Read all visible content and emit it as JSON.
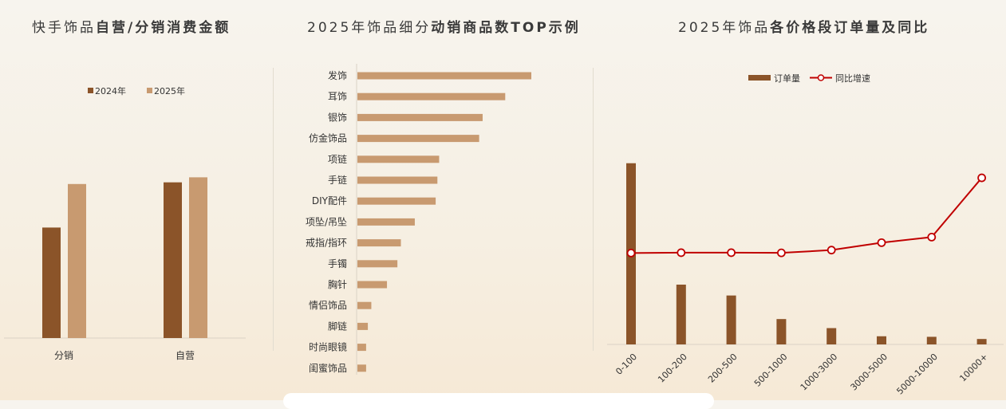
{
  "colors": {
    "dark": "#8b5429",
    "light": "#c89a70",
    "line": "#c00000"
  },
  "titles": [
    {
      "pre": "快手饰品",
      "bold": "自营/分销消费金额"
    },
    {
      "pre": "2025年饰品细分",
      "bold": "动销商品数TOP示例"
    },
    {
      "pre": "2025年饰品",
      "bold": "各价格段订单量及同比"
    }
  ],
  "chart_data": [
    {
      "type": "bar",
      "title": "快手饰品自营/分销消费金额",
      "categories": [
        "分销",
        "自营"
      ],
      "series": [
        {
          "name": "2024年",
          "values": [
            0.66,
            0.93
          ]
        },
        {
          "name": "2025年",
          "values": [
            0.92,
            0.96
          ]
        }
      ],
      "ylim": [
        0,
        1
      ],
      "legend": "top-center",
      "grid": false
    },
    {
      "type": "bar",
      "orientation": "horizontal",
      "title": "2025年饰品细分动销商品数TOP示例",
      "categories": [
        "发饰",
        "耳饰",
        "银饰",
        "仿金饰品",
        "项链",
        "手链",
        "DIY配件",
        "项坠/吊坠",
        "戒指/指环",
        "手镯",
        "胸针",
        "情侣饰品",
        "脚链",
        "时尚眼镜",
        "闺蜜饰品"
      ],
      "values": [
        100,
        85,
        72,
        70,
        47,
        46,
        45,
        33,
        25,
        23,
        17,
        8,
        6,
        5,
        5
      ],
      "xlim": [
        0,
        100
      ],
      "grid": false
    },
    {
      "type": "bar",
      "title": "2025年饰品各价格段订单量及同比",
      "categories": [
        "0-100",
        "100-200",
        "200-500",
        "500-1000",
        "1000-3000",
        "3000-5000",
        "5000-10000",
        "10000+"
      ],
      "series": [
        {
          "name": "订单量",
          "type": "bar",
          "values": [
            100,
            33,
            27,
            14,
            9,
            4.5,
            4.2,
            3
          ]
        },
        {
          "name": "同比增速",
          "type": "line",
          "values": [
            0,
            0.1,
            0.1,
            0.05,
            0.8,
            2.8,
            4.3,
            20.3
          ]
        }
      ],
      "ylim": [
        0,
        110
      ],
      "y2lim": [
        -35,
        30
      ],
      "legend": "top-center",
      "grid": false
    }
  ]
}
